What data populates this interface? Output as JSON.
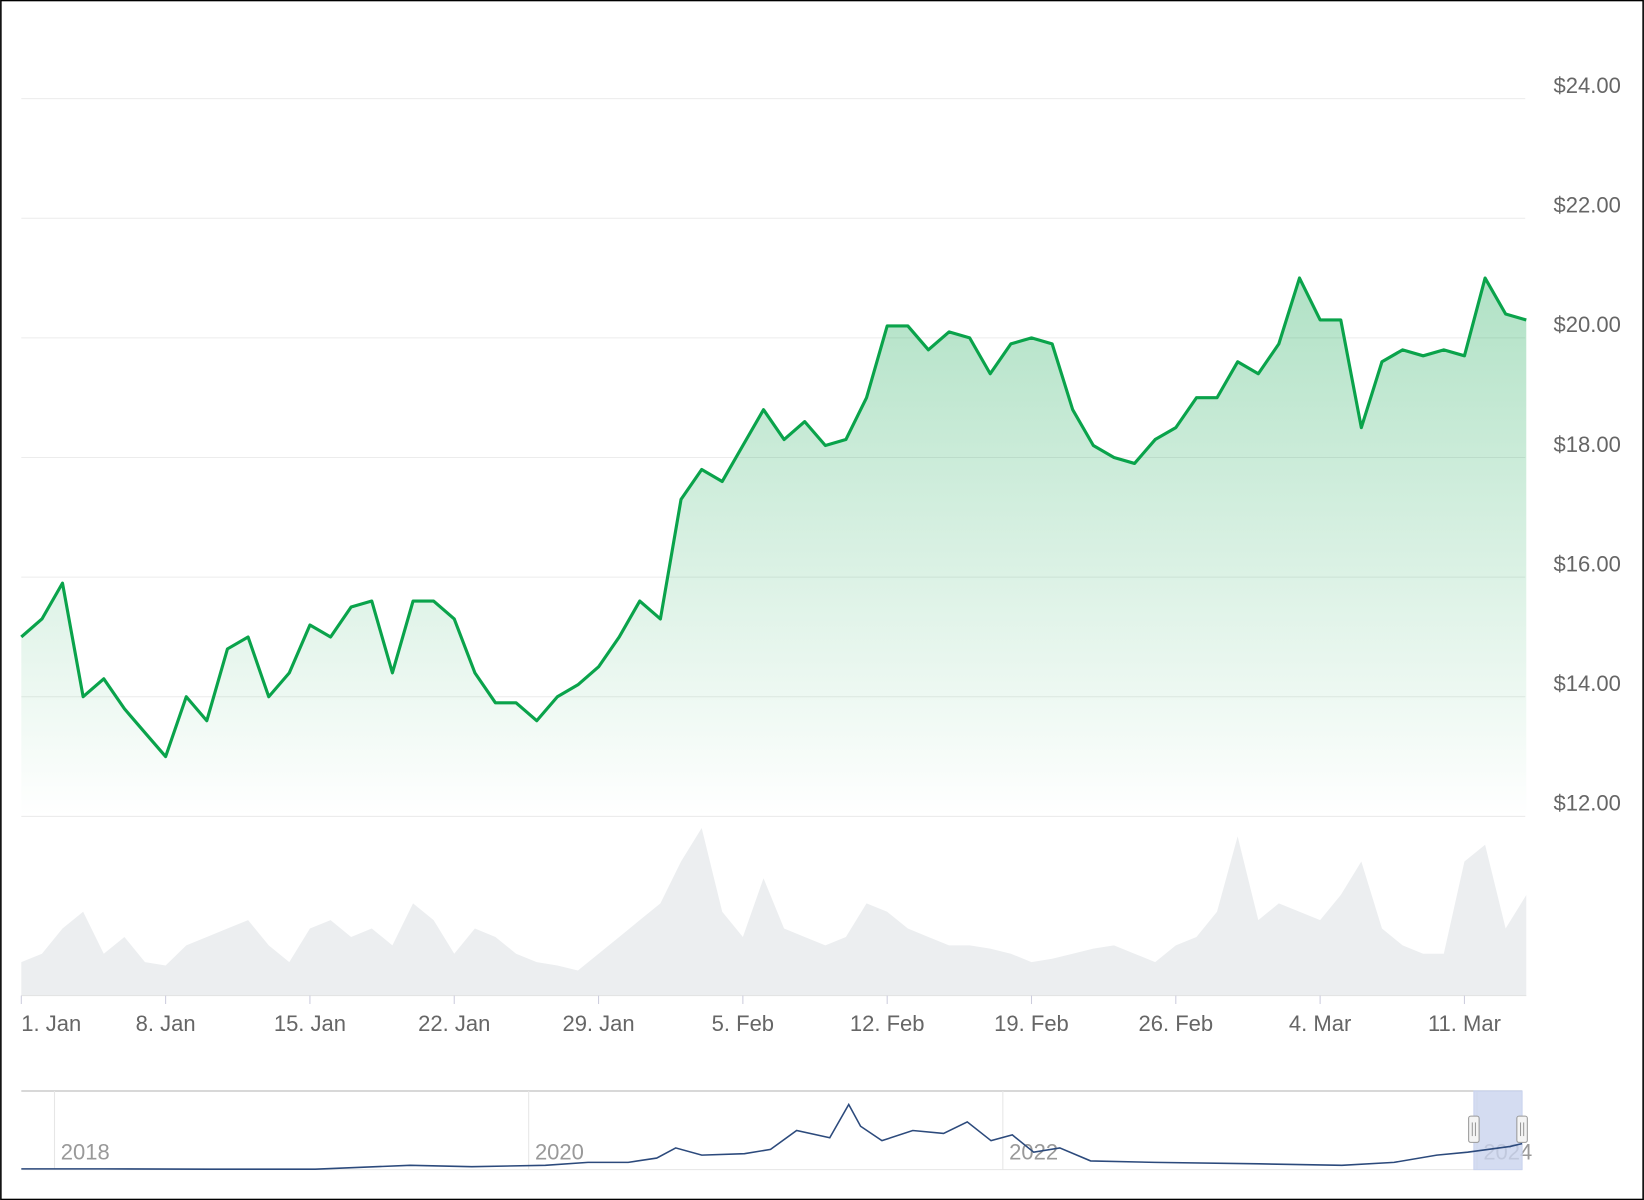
{
  "chart_data": [
    {
      "type": "line",
      "categories": [
        "1. Jan",
        null,
        null,
        null,
        null,
        null,
        null,
        "8. Jan",
        null,
        null,
        null,
        null,
        null,
        null,
        "15. Jan",
        null,
        null,
        null,
        null,
        null,
        null,
        "22. Jan",
        null,
        null,
        null,
        null,
        null,
        null,
        "29. Jan",
        null,
        null,
        null,
        null,
        null,
        null,
        "5. Feb",
        null,
        null,
        null,
        null,
        null,
        null,
        "12. Feb",
        null,
        null,
        null,
        null,
        null,
        null,
        "19. Feb",
        null,
        null,
        null,
        null,
        null,
        null,
        "26. Feb",
        null,
        null,
        null,
        null,
        null,
        null,
        "4. Mar",
        null,
        null,
        null,
        null,
        null,
        null,
        "11. Mar",
        null,
        null,
        null
      ],
      "series": [
        {
          "color": "#0aa34b",
          "values": [
            15.0,
            15.3,
            15.9,
            14.0,
            14.3,
            13.8,
            13.4,
            13.0,
            14.0,
            13.6,
            14.8,
            15.0,
            14.0,
            14.4,
            15.2,
            15.0,
            15.5,
            15.6,
            14.4,
            15.6,
            15.6,
            15.3,
            14.4,
            13.9,
            13.9,
            13.6,
            14.0,
            14.2,
            14.5,
            15.0,
            15.6,
            15.3,
            17.3,
            17.8,
            17.6,
            18.2,
            18.8,
            18.3,
            18.6,
            18.2,
            18.3,
            19.0,
            20.2,
            20.2,
            19.8,
            20.1,
            20.0,
            19.4,
            19.9,
            20.0,
            19.9,
            18.8,
            18.2,
            18.0,
            17.9,
            18.3,
            18.5,
            19.0,
            19.0,
            19.6,
            19.4,
            19.9,
            21.0,
            20.3,
            20.3,
            18.5,
            19.6,
            19.8,
            19.7,
            19.8,
            19.7,
            21.0,
            20.4,
            20.3
          ]
        },
        {
          "color": "#eceef0",
          "axis": "y2",
          "values": [
            20,
            25,
            40,
            50,
            25,
            35,
            20,
            18,
            30,
            35,
            40,
            45,
            30,
            20,
            40,
            45,
            35,
            40,
            30,
            55,
            45,
            25,
            40,
            35,
            25,
            20,
            18,
            15,
            25,
            35,
            45,
            55,
            80,
            100,
            50,
            35,
            70,
            40,
            35,
            30,
            35,
            55,
            50,
            40,
            35,
            30,
            30,
            28,
            25,
            20,
            22,
            25,
            28,
            30,
            25,
            20,
            30,
            35,
            50,
            95,
            45,
            55,
            50,
            45,
            60,
            80,
            40,
            30,
            25,
            25,
            80,
            90,
            40,
            60
          ]
        }
      ],
      "ylim": [
        12,
        25
      ],
      "yticks": [
        {
          "value": 12,
          "label": "$12.00"
        },
        {
          "value": 14,
          "label": "$14.00"
        },
        {
          "value": 16,
          "label": "$16.00"
        },
        {
          "value": 18,
          "label": "$18.00"
        },
        {
          "value": 20,
          "label": "$20.00"
        },
        {
          "value": 22,
          "label": "$22.00"
        },
        {
          "value": 24,
          "label": "$24.00"
        }
      ],
      "y2lim": [
        0,
        100
      ],
      "grid": true
    },
    {
      "type": "line",
      "x": [
        2017.86,
        2018.21,
        2018.65,
        2019.1,
        2019.5,
        2019.76,
        2020.07,
        2020.25,
        2020.42,
        2020.54,
        2020.62,
        2020.73,
        2020.91,
        2021.02,
        2021.13,
        2021.27,
        2021.35,
        2021.4,
        2021.49,
        2021.62,
        2021.75,
        2021.85,
        2021.95,
        2022.04,
        2022.13,
        2022.24,
        2022.37,
        2022.64,
        2023.08,
        2023.43,
        2023.65,
        2023.83,
        2023.96,
        2024.14,
        2024.19
      ],
      "series": [
        {
          "color": "#2c4a7c",
          "values": [
            0.5,
            0.5,
            0.3,
            0.3,
            3,
            2,
            3,
            5,
            5,
            8,
            15,
            10,
            11,
            14,
            27,
            22,
            45,
            30,
            20,
            27,
            25,
            33,
            20,
            24,
            12,
            15,
            6,
            5,
            4,
            3,
            5,
            10,
            12,
            16,
            18
          ]
        }
      ],
      "xlim": [
        2017.86,
        2024.19
      ],
      "xticks": [
        2018,
        2020,
        2022,
        2024
      ],
      "ylim": [
        0,
        50
      ],
      "grid": true
    }
  ]
}
